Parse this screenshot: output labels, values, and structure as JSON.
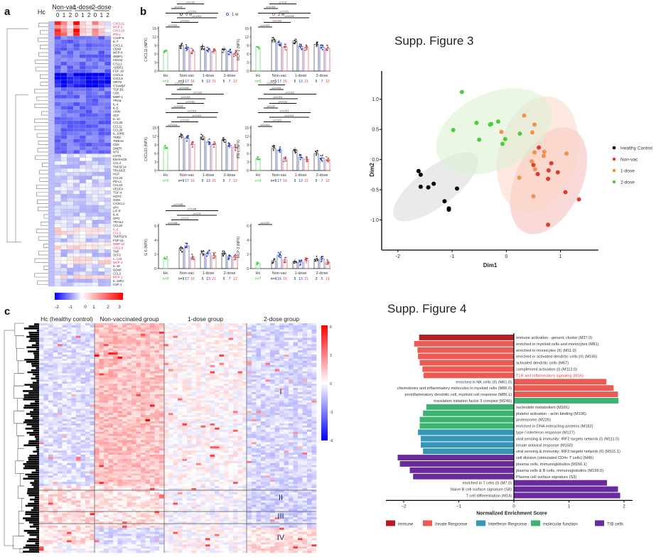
{
  "panel_labels": {
    "a": "a",
    "b": "b",
    "c": "c"
  },
  "supp_titles": {
    "fig3": "Supp. Figure 3",
    "fig4": "Supp. Figure 4"
  },
  "panel_a": {
    "group_headers": [
      "Hc",
      "Non-vac",
      "1-dose",
      "2-dose"
    ],
    "timepoints": [
      "0",
      "1",
      "2",
      "0",
      "1",
      "2",
      "0",
      "1",
      "2"
    ],
    "genes": [
      "CXCL11",
      "MCP-2",
      "CXCL10",
      "IFN-γ",
      "CASP-8",
      "IL-7",
      "CXCL1",
      "CD40",
      "MCP-4",
      "4EBP1",
      "CD244",
      "CTLL1",
      "ADBR1",
      "FGF-19",
      "CXCL6",
      "CXCL5",
      "SIRT2",
      "STAMBP",
      "TGF-β1",
      "CD5",
      "MMP-1",
      "TRAIL",
      "IL-4",
      "IL-5",
      "AXIN",
      "SCF",
      "IL-10",
      "CCL25",
      "CCL11",
      "CCL28",
      "IL-10RB",
      "TNFβ",
      "TWEAK",
      "CD6",
      "DNER",
      "NT3",
      "CST5",
      "EN-RAGE",
      "CCL4",
      "TNFSF14",
      "TRANCE",
      "HGF",
      "CCL19",
      "PD-L1",
      "CCL23",
      "VEGFA",
      "TGF-α",
      "HGF2",
      "OSM",
      "CX3CL1",
      "uPA",
      "LIF-R",
      "IL-8",
      "OPG",
      "TRAIL2",
      "CCL20",
      "IL-6",
      "CCL3",
      "TNFRSF9",
      "FGF-21",
      "MMP-10",
      "CXCL9",
      "TNF",
      "SCF2",
      "IL-12B",
      "MCP-3",
      "IL-18",
      "GDNF",
      "CCL2",
      "MCP-1",
      "IL-18R1",
      "CSF-1"
    ],
    "red_genes": [
      "CXCL11",
      "MCP-2",
      "CXCL10",
      "IFN-γ",
      "IL-6",
      "CCL3",
      "MMP-10",
      "CXCL9",
      "IL-12B",
      "MCP-3",
      "MCP-1"
    ],
    "colorbar": {
      "ticks": [
        "-2",
        "-1",
        "0",
        "1",
        "2",
        "3"
      ]
    }
  },
  "panel_b": {
    "legend": [
      {
        "label": "0 w",
        "color": "#222222",
        "marker": "circle"
      },
      {
        "label": "1 w",
        "color": "#2233cc",
        "marker": "square"
      },
      {
        "label": "2 w",
        "color": "#e04040",
        "marker": "triangle"
      }
    ],
    "groups": [
      "Hc",
      "Non-vac",
      "1-dose",
      "2-dose"
    ],
    "plots": [
      {
        "ylabel": "CXCL11 (NPX)",
        "yticks": [
          "0",
          "3",
          "6",
          "9",
          "12",
          "15"
        ],
        "ymax": 15,
        "means": {
          "hc": 6.8,
          "nonvac": [
            9.0,
            8.2,
            7.0
          ],
          "one": [
            8.6,
            7.4,
            7.0
          ],
          "two": [
            7.6,
            6.8,
            6.2
          ]
        },
        "n": {
          "hc": "n=9",
          "nonvac": [
            "n=9",
            "17",
            "16"
          ],
          "one": [
            "5",
            "13",
            "21"
          ],
          "two": [
            "5",
            "7",
            "12"
          ]
        },
        "pvals": [
          "p<0.001",
          "p<0.001",
          "p<0.001",
          "p<0.001",
          "p<0.03",
          "p<0.029",
          "p<0.004",
          "p<0.007",
          "p<0.003",
          "p<0.010"
        ]
      },
      {
        "ylabel": "MCP-2 (NPX)",
        "yticks": [
          "0",
          "3",
          "6",
          "9",
          "12",
          "15"
        ],
        "ymax": 15,
        "means": {
          "hc": 8.4,
          "nonvac": [
            11.0,
            10.0,
            8.4
          ],
          "one": [
            10.6,
            8.6,
            8.2
          ],
          "two": [
            9.4,
            8.4,
            8.0
          ]
        },
        "n": {
          "hc": "n=9",
          "nonvac": [
            "n=9",
            "17",
            "16"
          ],
          "one": [
            "5",
            "13",
            "21"
          ],
          "two": [
            "5",
            "7",
            "12"
          ]
        },
        "pvals": [
          "p<0.001",
          "p<0.001",
          "p<0.003",
          "p<0.001",
          "p<0.003",
          "p<0.02",
          "p<0.007",
          "p<0.028"
        ]
      },
      {
        "ylabel": "CXCL10 (NPX)",
        "yticks": [
          "0",
          "3",
          "6",
          "9",
          "12",
          "15"
        ],
        "ymax": 15,
        "means": {
          "hc": 8.2,
          "nonvac": [
            12.0,
            11.4,
            9.2
          ],
          "one": [
            11.8,
            10.0,
            9.2
          ],
          "two": [
            10.8,
            8.8,
            8.2
          ]
        },
        "n": {
          "hc": "n=9",
          "nonvac": [
            "n=9",
            "17",
            "16"
          ],
          "one": [
            "5",
            "13",
            "21"
          ],
          "two": [
            "5",
            "7",
            "12"
          ]
        },
        "pvals": [
          "p<0.001",
          "p<0.001",
          "p<0.001",
          "p<0.001",
          "p<0.003",
          "p<0.001",
          "p<0.013",
          "p<0.002",
          "p<0.003",
          "p<0.009"
        ]
      },
      {
        "ylabel": "IFN-γ (NPX)",
        "yticks": [
          "0",
          "3",
          "6",
          "9",
          "12",
          "15"
        ],
        "ymax": 15,
        "means": {
          "hc": 4.2,
          "nonvac": [
            7.8,
            7.2,
            4.0
          ],
          "one": [
            7.2,
            4.6,
            4.0
          ],
          "two": [
            6.0,
            4.4,
            3.8
          ]
        },
        "n": {
          "hc": "n=9",
          "nonvac": [
            "n=9",
            "17",
            "16"
          ],
          "one": [
            "5",
            "13",
            "21"
          ],
          "two": [
            "5",
            "7",
            "12"
          ]
        },
        "pvals": [
          "p<0.001",
          "p<0.001",
          "p<0.001",
          "p<0.001",
          "p<0.09",
          "p<0.010",
          "p<0.001",
          "p<0.001",
          "p<0.003",
          "p<0.008"
        ]
      },
      {
        "ylabel": "IL-6 (NPX)",
        "yticks": [
          "0",
          "2",
          "4",
          "6"
        ],
        "ymax": 6,
        "means": {
          "hc": 1.4,
          "nonvac": [
            2.8,
            3.2,
            1.6
          ],
          "one": [
            2.1,
            2.2,
            1.8
          ],
          "two": [
            2.2,
            1.7,
            1.6
          ]
        },
        "n": {
          "hc": "n=9",
          "nonvac": [
            "n=9",
            "17",
            "16"
          ],
          "one": [
            "5",
            "13",
            "21"
          ],
          "two": [
            "5",
            "7",
            "12"
          ]
        },
        "pvals": [
          "p<0.008",
          "p<0.01",
          "p<0.03",
          "p<0.008",
          "p<0.008"
        ]
      },
      {
        "ylabel": "MCP-3 (NPX)",
        "yticks": [
          "0",
          "2",
          "4",
          "6"
        ],
        "ymax": 6,
        "means": {
          "hc": 0.7,
          "nonvac": [
            1.1,
            1.9,
            1.2
          ],
          "one": [
            1.0,
            0.9,
            1.1
          ],
          "two": [
            1.3,
            1.4,
            0.9
          ]
        },
        "n": {
          "hc": "n=7",
          "nonvac": [
            "n=9",
            "16",
            "16"
          ],
          "one": [
            "5",
            "13",
            "21"
          ],
          "two": [
            "3",
            "5",
            "11"
          ]
        },
        "pvals": [
          "p<0.037"
        ]
      }
    ]
  },
  "panel_c": {
    "group_headers": [
      "Hc (healthy control)",
      "Non-vaccinated group",
      "1-dose group",
      "2-dose group"
    ],
    "clusters": [
      "I",
      "II",
      "III",
      "IV"
    ],
    "colorbar": {
      "ticks": [
        "6",
        "3",
        "0",
        "-3",
        "-6"
      ]
    }
  },
  "chart_data": [
    {
      "type": "scatter",
      "title": "Supp. Figure 3",
      "xlabel": "Dim1",
      "ylabel": "Dim2",
      "xlim": [
        -2.3,
        1.7
      ],
      "ylim": [
        -1.5,
        1.35
      ],
      "xticks": [
        "-2",
        "-1",
        "0",
        "1"
      ],
      "yticks": [
        "1.0",
        "0.5",
        "0.0",
        "-0.5",
        "-1.0"
      ],
      "legend_position": "right",
      "series": [
        {
          "name": "Healthy Control",
          "color": "#000000",
          "ellipse": {
            "cx": -1.3,
            "cy": -0.45,
            "rx": 0.95,
            "ry": 0.32,
            "angle": -37,
            "fill": "#d9d9d9"
          },
          "points": [
            [
              -1.62,
              -0.19
            ],
            [
              -1.58,
              -0.25
            ],
            [
              -1.58,
              -0.45
            ],
            [
              -1.44,
              -0.46
            ],
            [
              -1.34,
              -0.4
            ],
            [
              -1.14,
              -0.69
            ],
            [
              -1.06,
              -0.81
            ],
            [
              -1.06,
              -0.83
            ],
            [
              -0.91,
              -0.48
            ]
          ]
        },
        {
          "name": "Non-vac",
          "color": "#e03a2e",
          "ellipse": {
            "cx": 0.78,
            "cy": -0.35,
            "rx": 1.05,
            "ry": 0.55,
            "angle": -65,
            "fill": "#f6b9b9"
          },
          "points": [
            [
              0.6,
              0.2
            ],
            [
              0.5,
              -0.09
            ],
            [
              0.58,
              -0.24
            ],
            [
              0.78,
              -0.18
            ],
            [
              0.83,
              -0.06
            ],
            [
              0.95,
              -0.21
            ],
            [
              0.77,
              -0.32
            ],
            [
              1.09,
              -0.54
            ],
            [
              1.34,
              -0.66
            ],
            [
              0.77,
              -1.08
            ]
          ]
        },
        {
          "name": "1-dose",
          "color": "#f2914b",
          "ellipse": {
            "cx": 0.58,
            "cy": 0.08,
            "rx": 1.1,
            "ry": 0.65,
            "angle": -75,
            "fill": "#fbd7c4"
          },
          "points": [
            [
              0.33,
              0.73
            ],
            [
              0.52,
              0.58
            ],
            [
              0.48,
              0.45
            ],
            [
              -0.09,
              0.46
            ],
            [
              0.52,
              0.12
            ],
            [
              0.7,
              0.13
            ],
            [
              0.69,
              0.06
            ],
            [
              1.11,
              0.1
            ],
            [
              0.47,
              -0.03
            ],
            [
              0.53,
              -0.16
            ],
            [
              0.24,
              -0.3
            ],
            [
              0.5,
              -0.61
            ]
          ]
        },
        {
          "name": "2-dose",
          "color": "#4ccc3c",
          "ellipse": {
            "cx": -0.23,
            "cy": 0.47,
            "rx": 1.13,
            "ry": 0.63,
            "angle": -25,
            "fill": "#d9f0d0"
          },
          "points": [
            [
              -0.82,
              1.12
            ],
            [
              -0.98,
              0.49
            ],
            [
              -0.55,
              0.61
            ],
            [
              -0.5,
              0.33
            ],
            [
              -0.3,
              0.58
            ],
            [
              -0.28,
              0.59
            ],
            [
              -0.15,
              0.63
            ],
            [
              -0.07,
              0.26
            ],
            [
              -0.02,
              0.34
            ],
            [
              0.25,
              0.43
            ]
          ]
        }
      ]
    },
    {
      "type": "bar",
      "title": "Supp. Figure 4",
      "xlabel": "Normalized Enrichment Score",
      "xlim": [
        -2.35,
        2.1
      ],
      "xticks": [
        "-2",
        "-1",
        "0",
        "1",
        "2"
      ],
      "legend_position": "bottom",
      "legend": [
        {
          "label": "immune",
          "color": "#b71c22"
        },
        {
          "label": "Innate Response",
          "color": "#e95b54"
        },
        {
          "label": "Interferon Response",
          "color": "#3596b5"
        },
        {
          "label": "molecular function",
          "color": "#3cb371"
        },
        {
          "label": "T/B cells",
          "color": "#6a2c9c"
        }
      ],
      "bars": [
        {
          "label": "immune activation - generic cluster (M37.0)",
          "value": -1.72,
          "category": "immune"
        },
        {
          "label": "enriched in myeloid cells and monocytes (M81)",
          "value": -1.81,
          "category": "Innate Response"
        },
        {
          "label": "enriched in monocytes (II) (M11.0)",
          "value": -1.75,
          "category": "Innate Response"
        },
        {
          "label": "enriched in activated dendritic cells (II) (M165)",
          "value": -1.74,
          "category": "Innate Response"
        },
        {
          "label": "activated dendritic cells (M67)",
          "value": -1.71,
          "category": "Innate Response"
        },
        {
          "label": "complement activation (I) (M112.0)",
          "value": -1.66,
          "category": "Innate Response"
        },
        {
          "label": "TLR and inflammatory signaling (M16)",
          "value": -1.64,
          "category": "Innate Response",
          "highlight": true
        },
        {
          "label": "enriched in NK cells (II) (M61.0)",
          "value": 1.68,
          "category": "Innate Response"
        },
        {
          "label": "chemokines and inflammatory molecules in myeloid cells (M86.0)",
          "value": 1.81,
          "category": "Innate Response"
        },
        {
          "label": "proinflammatory dendritic cell, myeloid cell response (M86.1)",
          "value": 1.89,
          "category": "Innate Response"
        },
        {
          "label": "translation initiation factor 3 complex (M245)",
          "value": 1.9,
          "category": "molecular function"
        },
        {
          "label": "nucleotide metabolism (M181)",
          "value": -1.59,
          "category": "molecular function"
        },
        {
          "label": "platelet activation - actin binding (M196)",
          "value": -1.65,
          "category": "molecular function"
        },
        {
          "label": "proteasome (M226)",
          "value": -1.71,
          "category": "molecular function"
        },
        {
          "label": "enriched in DNA interacting proteins (M182)",
          "value": -1.71,
          "category": "molecular function"
        },
        {
          "label": "type I interferon response (M127)",
          "value": -1.74,
          "category": "Interferon Response"
        },
        {
          "label": "viral sensing & immunity; IRF2 targets network (I) (M111.0)",
          "value": -1.69,
          "category": "Interferon Response"
        },
        {
          "label": "innate antiviral response (M150)",
          "value": -1.69,
          "category": "Interferon Response"
        },
        {
          "label": "viral sensing & immunity; IRF2 targets network (II) (M111.1)",
          "value": -1.65,
          "category": "Interferon Response"
        },
        {
          "label": "cell division (stimulated CD4+ T cells) (M46)",
          "value": -2.11,
          "category": "T/B cells"
        },
        {
          "label": "plasma cells, immunoglobulins (M156.1)",
          "value": -2.07,
          "category": "T/B cells"
        },
        {
          "label": "plasma cells & B cells, immunoglobulins (M156.0)",
          "value": -1.89,
          "category": "T/B cells"
        },
        {
          "label": "Plasma cell surface signature (S3)",
          "value": -1.83,
          "category": "T/B cells"
        },
        {
          "label": "enriched in T cells (I) (M7.0)",
          "value": 1.69,
          "category": "T/B cells"
        },
        {
          "label": "Naive B cell surface signature (S8)",
          "value": 1.89,
          "category": "T/B cells"
        },
        {
          "label": "T cell differentiation (M14)",
          "value": 1.93,
          "category": "T/B cells"
        }
      ]
    }
  ]
}
